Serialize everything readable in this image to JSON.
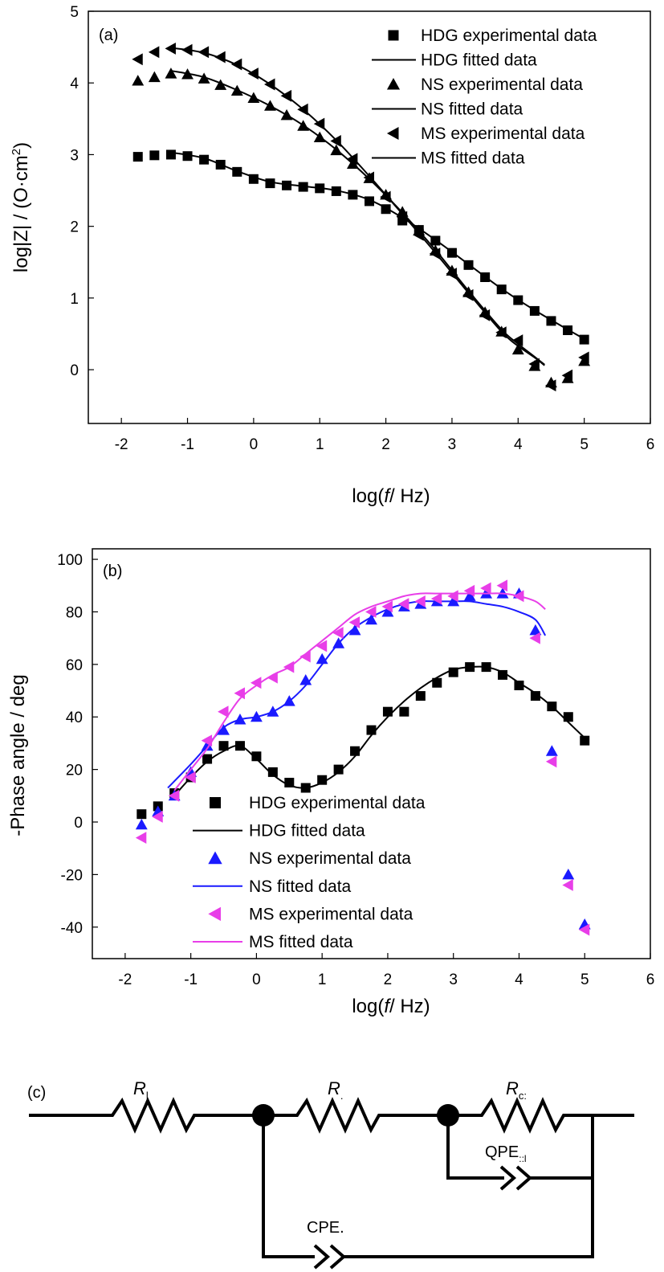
{
  "chart_data": [
    {
      "panel_label": "(a)",
      "type": "scatter",
      "xlabel": "log(f/ Hz)",
      "xlabel_prefix": "log(",
      "xlabel_italic": "f",
      "xlabel_suffix": "/ Hz)",
      "ylabel": "log|Z| / (O·cm2)",
      "xlim": [
        -2.5,
        6
      ],
      "ylim": [
        -0.75,
        5
      ],
      "xticks": [
        -2,
        -1,
        0,
        1,
        2,
        3,
        4,
        5,
        6
      ],
      "yticks": [
        0,
        1,
        2,
        3,
        4,
        5
      ],
      "legend_position": "top-right",
      "grid": false,
      "series": [
        {
          "name": "HDG experimental data",
          "kind": "points",
          "marker": "square",
          "color": "#000000",
          "x": [
            -1.75,
            -1.5,
            -1.25,
            -1.0,
            -0.75,
            -0.5,
            -0.25,
            0,
            0.25,
            0.5,
            0.75,
            1.0,
            1.25,
            1.5,
            1.75,
            2.0,
            2.25,
            2.5,
            2.75,
            3.0,
            3.25,
            3.5,
            3.75,
            4.0,
            4.25,
            4.5,
            4.75,
            5.0
          ],
          "y": [
            2.97,
            2.99,
            3.0,
            2.98,
            2.93,
            2.86,
            2.76,
            2.66,
            2.6,
            2.57,
            2.55,
            2.53,
            2.49,
            2.44,
            2.35,
            2.24,
            2.08,
            1.95,
            1.8,
            1.63,
            1.46,
            1.29,
            1.12,
            0.97,
            0.82,
            0.68,
            0.55,
            0.42
          ]
        },
        {
          "name": "HDG fitted data",
          "kind": "line",
          "color": "#000000",
          "x": [
            -1.25,
            -0.75,
            -0.25,
            0.25,
            0.75,
            1.25,
            1.75,
            2.25,
            2.75,
            3.25,
            3.75,
            4.25,
            4.75,
            5.0
          ],
          "y": [
            3.03,
            2.95,
            2.77,
            2.62,
            2.56,
            2.5,
            2.37,
            2.12,
            1.81,
            1.47,
            1.13,
            0.83,
            0.56,
            0.43
          ]
        },
        {
          "name": "NS experimental data",
          "kind": "points",
          "marker": "triangle-up",
          "color": "#000000",
          "x": [
            -1.75,
            -1.5,
            -1.25,
            -1.0,
            -0.75,
            -0.5,
            -0.25,
            0,
            0.25,
            0.5,
            0.75,
            1.0,
            1.25,
            1.5,
            1.75,
            2.0,
            2.25,
            2.5,
            2.75,
            3.0,
            3.25,
            3.5,
            3.75,
            4.0,
            4.25,
            4.5,
            4.75,
            5.0
          ],
          "y": [
            4.03,
            4.08,
            4.13,
            4.12,
            4.06,
            3.97,
            3.89,
            3.79,
            3.68,
            3.55,
            3.4,
            3.24,
            3.06,
            2.87,
            2.67,
            2.44,
            2.2,
            1.94,
            1.66,
            1.38,
            1.08,
            0.8,
            0.53,
            0.28,
            0.05,
            -0.18,
            -0.12,
            0.12
          ]
        },
        {
          "name": "NS fitted data",
          "kind": "line",
          "color": "#000000",
          "x": [
            -1.25,
            -0.75,
            -0.25,
            0.25,
            0.75,
            1.25,
            1.75,
            2.25,
            2.75,
            3.25,
            3.75,
            4.0,
            4.25,
            4.4
          ],
          "y": [
            4.17,
            4.08,
            3.9,
            3.68,
            3.41,
            3.07,
            2.66,
            2.19,
            1.67,
            1.1,
            0.56,
            0.36,
            0.18,
            0.07
          ]
        },
        {
          "name": "MS experimental data",
          "kind": "points",
          "marker": "triangle-left",
          "color": "#000000",
          "x": [
            -1.75,
            -1.5,
            -1.25,
            -1.0,
            -0.75,
            -0.5,
            -0.25,
            0,
            0.25,
            0.5,
            0.75,
            1.0,
            1.25,
            1.5,
            1.75,
            2.0,
            2.25,
            2.5,
            2.75,
            3.0,
            3.25,
            3.5,
            3.75,
            4.0,
            4.25,
            4.5,
            4.75,
            5.0
          ],
          "y": [
            4.33,
            4.43,
            4.48,
            4.46,
            4.43,
            4.36,
            4.26,
            4.13,
            3.98,
            3.82,
            3.63,
            3.43,
            3.19,
            2.94,
            2.68,
            2.41,
            2.13,
            1.88,
            1.62,
            1.34,
            1.04,
            0.76,
            0.52,
            0.41,
            0.08,
            -0.22,
            -0.08,
            0.17
          ]
        },
        {
          "name": "MS fitted data",
          "kind": "line",
          "color": "#000000",
          "x": [
            -1.25,
            -0.75,
            -0.25,
            0.25,
            0.75,
            1.25,
            1.75,
            2.25,
            2.75,
            3.25,
            3.75,
            4.0,
            4.25,
            4.4
          ],
          "y": [
            4.49,
            4.42,
            4.25,
            3.98,
            3.63,
            3.2,
            2.7,
            2.17,
            1.63,
            1.07,
            0.53,
            0.33,
            0.17,
            0.06
          ]
        }
      ]
    },
    {
      "panel_label": "(b)",
      "type": "scatter",
      "xlabel": "log(f/ Hz)",
      "xlabel_prefix": "log(",
      "xlabel_italic": "f",
      "xlabel_suffix": "/ Hz)",
      "ylabel": "-Phase angle / deg",
      "xlim": [
        -2.5,
        6
      ],
      "ylim": [
        -52,
        104
      ],
      "xticks": [
        -2,
        -1,
        0,
        1,
        2,
        3,
        4,
        5,
        6
      ],
      "yticks": [
        -40,
        -20,
        0,
        20,
        40,
        60,
        80,
        100
      ],
      "legend_position": "bottom-left",
      "grid": false,
      "series": [
        {
          "name": "HDG experimental data",
          "kind": "points",
          "marker": "square",
          "color": "#000000",
          "x": [
            -1.75,
            -1.5,
            -1.25,
            -1.0,
            -0.75,
            -0.5,
            -0.25,
            0,
            0.25,
            0.5,
            0.75,
            1.0,
            1.25,
            1.5,
            1.75,
            2.0,
            2.25,
            2.5,
            2.75,
            3.0,
            3.25,
            3.5,
            3.75,
            4.0,
            4.25,
            4.5,
            4.75,
            5.0
          ],
          "y": [
            3,
            6,
            11,
            17,
            24,
            29,
            29,
            25,
            19,
            15,
            13,
            16,
            20,
            27,
            35,
            42,
            42,
            48,
            53,
            57,
            59,
            59,
            56,
            52,
            48,
            44,
            40,
            31
          ]
        },
        {
          "name": "HDG fitted data",
          "kind": "line",
          "color": "#000000",
          "x": [
            -1.25,
            -1.0,
            -0.75,
            -0.5,
            -0.25,
            0,
            0.25,
            0.5,
            0.75,
            1.0,
            1.25,
            1.5,
            1.75,
            2.0,
            2.25,
            2.5,
            2.75,
            3.0,
            3.25,
            3.5,
            3.75,
            4.0,
            4.25,
            4.5,
            4.75,
            5.0
          ],
          "y": [
            10,
            17,
            23,
            27,
            29,
            24,
            18,
            14,
            13,
            15,
            19,
            25,
            33,
            40,
            46,
            51,
            55,
            58,
            59,
            59,
            57,
            53,
            49,
            44,
            38,
            32
          ]
        },
        {
          "name": "NS experimental data",
          "kind": "points",
          "marker": "triangle-up",
          "color": "#1a1aff",
          "x": [
            -1.75,
            -1.5,
            -1.25,
            -1.0,
            -0.75,
            -0.5,
            -0.25,
            0,
            0.25,
            0.5,
            0.75,
            1.0,
            1.25,
            1.5,
            1.75,
            2.0,
            2.25,
            2.5,
            2.75,
            3.0,
            3.25,
            3.5,
            3.75,
            4.0,
            4.25,
            4.5,
            4.75,
            5.0
          ],
          "y": [
            -1,
            4,
            10,
            19,
            29,
            35,
            39,
            40,
            42,
            46,
            54,
            62,
            68,
            73,
            77,
            80,
            82,
            83,
            84,
            84,
            86,
            87,
            87,
            87,
            73,
            27,
            -20,
            -39
          ]
        },
        {
          "name": "NS fitted data",
          "kind": "line",
          "color": "#1a1aff",
          "x": [
            -1.35,
            -1.0,
            -0.75,
            -0.5,
            -0.25,
            0,
            0.25,
            0.5,
            0.75,
            1.0,
            1.25,
            1.5,
            1.75,
            2.0,
            2.25,
            2.5,
            2.75,
            3.0,
            3.25,
            3.5,
            3.75,
            4.0,
            4.25,
            4.4
          ],
          "y": [
            13,
            22,
            29,
            36,
            39,
            40,
            42,
            46,
            52,
            60,
            68,
            74,
            78,
            81,
            83,
            84,
            84,
            84,
            84,
            83,
            82,
            80,
            77,
            71
          ]
        },
        {
          "name": "MS experimental data",
          "kind": "points",
          "marker": "triangle-left",
          "color": "#e83ee8",
          "x": [
            -1.75,
            -1.5,
            -1.25,
            -1.0,
            -0.75,
            -0.5,
            -0.25,
            0,
            0.25,
            0.5,
            0.75,
            1.0,
            1.25,
            1.5,
            1.75,
            2.0,
            2.25,
            2.5,
            2.75,
            3.0,
            3.25,
            3.5,
            3.75,
            4.0,
            4.25,
            4.5,
            4.75,
            5.0
          ],
          "y": [
            -6,
            2,
            10,
            17,
            31,
            42,
            49,
            53,
            55,
            59,
            63,
            67,
            72,
            76,
            80,
            82,
            83,
            84,
            85,
            86,
            88,
            89,
            90,
            86,
            70,
            23,
            -24,
            -41
          ]
        },
        {
          "name": "MS fitted data",
          "kind": "line",
          "color": "#e83ee8",
          "x": [
            -1.25,
            -1.0,
            -0.75,
            -0.5,
            -0.25,
            0,
            0.25,
            0.5,
            0.75,
            1.0,
            1.25,
            1.5,
            1.75,
            2.0,
            2.25,
            2.5,
            2.75,
            3.0,
            3.25,
            3.5,
            3.75,
            4.0,
            4.25,
            4.4
          ],
          "y": [
            12,
            20,
            28,
            38,
            47,
            52,
            56,
            59,
            64,
            69,
            74,
            79,
            82,
            84,
            86,
            87,
            87,
            87,
            87,
            87,
            87,
            86,
            84,
            81
          ]
        }
      ]
    }
  ],
  "circuit": {
    "panel_label": "(c)",
    "resistors": [
      {
        "symbol": "R",
        "subscript": "l"
      },
      {
        "symbol": "R",
        "subscript": "."
      },
      {
        "symbol": "R",
        "subscript": "c:"
      }
    ],
    "elements": [
      {
        "label": "QPE",
        "subscript": "::l"
      },
      {
        "label": "CPE.",
        "subscript": ""
      }
    ]
  }
}
